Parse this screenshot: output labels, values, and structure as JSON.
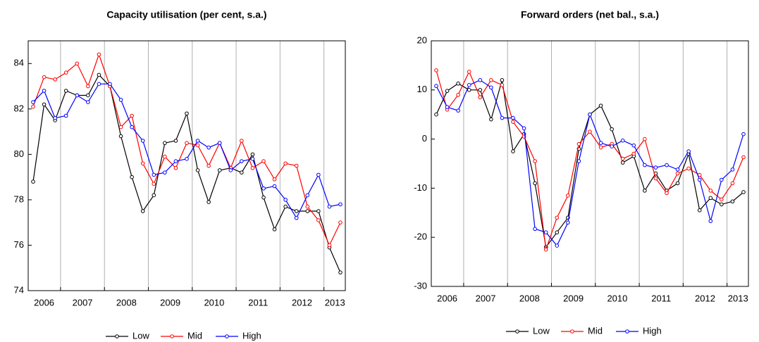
{
  "chart_data": [
    {
      "type": "line",
      "title": "Capacity utilisation (per cent, s.a.)",
      "categories": [
        "2006",
        null,
        null,
        "2007",
        null,
        null,
        null,
        "2008",
        null,
        null,
        null,
        "2009",
        null,
        null,
        null,
        "2010",
        null,
        null,
        null,
        "2011",
        null,
        null,
        null,
        "2012",
        null,
        null,
        null,
        "2013",
        null
      ],
      "series": [
        {
          "name": "Low",
          "color": "#000000",
          "values": [
            78.8,
            82.2,
            81.5,
            82.8,
            82.6,
            82.6,
            83.5,
            83.0,
            80.8,
            79.0,
            77.5,
            78.2,
            80.5,
            80.6,
            81.8,
            79.3,
            77.9,
            79.3,
            79.4,
            79.2,
            80.0,
            78.1,
            76.7,
            77.7,
            77.5,
            77.5,
            77.5,
            75.9,
            74.8
          ]
        },
        {
          "name": "Mid",
          "color": "#ff0000",
          "values": [
            82.1,
            83.4,
            83.3,
            83.6,
            84.0,
            83.0,
            84.4,
            83.0,
            81.2,
            81.7,
            79.6,
            78.7,
            79.9,
            79.4,
            80.5,
            80.4,
            79.5,
            80.5,
            79.4,
            80.6,
            79.4,
            79.7,
            78.9,
            79.6,
            79.5,
            77.7,
            77.1,
            76.0,
            77.0
          ]
        },
        {
          "name": "High",
          "color": "#0000ff",
          "values": [
            82.3,
            82.8,
            81.6,
            81.7,
            82.6,
            82.3,
            83.1,
            83.1,
            82.4,
            81.2,
            80.6,
            79.1,
            79.2,
            79.7,
            79.8,
            80.6,
            80.3,
            80.5,
            79.3,
            79.7,
            79.8,
            78.5,
            78.6,
            78.0,
            77.2,
            78.2,
            79.1,
            77.7,
            77.8
          ]
        }
      ],
      "ylim": [
        74,
        85
      ],
      "yticks": [
        74,
        76,
        78,
        80,
        82,
        84
      ],
      "grid": "x",
      "legend": "bottom"
    },
    {
      "type": "line",
      "title": "Forward orders (net bal., s.a.)",
      "categories": [
        "2006",
        null,
        null,
        "2007",
        null,
        null,
        null,
        "2008",
        null,
        null,
        null,
        "2009",
        null,
        null,
        null,
        "2010",
        null,
        null,
        null,
        "2011",
        null,
        null,
        null,
        "2012",
        null,
        null,
        null,
        "2013",
        null
      ],
      "series": [
        {
          "name": "Low",
          "color": "#000000",
          "values": [
            5,
            9.8,
            11.3,
            10,
            10,
            4,
            12,
            -2.5,
            1,
            -9,
            -22,
            -19,
            -16,
            -2,
            5,
            6.8,
            2,
            -4.8,
            -3.5,
            -10.5,
            -7,
            -10.5,
            -9,
            -3,
            -14.5,
            -12,
            -13.3,
            -12.7,
            -10.8
          ]
        },
        {
          "name": "Mid",
          "color": "#ff0000",
          "values": [
            14,
            6,
            9,
            13.7,
            8.5,
            12,
            11,
            3.5,
            0.5,
            -4.5,
            -22.5,
            -16,
            -11.5,
            -1,
            1.5,
            -1.7,
            -1,
            -4,
            -3,
            0,
            -8,
            -11,
            -7,
            -6,
            -7.3,
            -10.5,
            -12.3,
            -9,
            -3.7
          ]
        },
        {
          "name": "High",
          "color": "#0000ff",
          "values": [
            10.8,
            6.5,
            5.8,
            11,
            12,
            10.5,
            4.3,
            4.3,
            2.2,
            -18.3,
            -19,
            -21.7,
            -17,
            -4.5,
            5,
            -0.8,
            -1.5,
            -0.3,
            -1.3,
            -5.3,
            -5.8,
            -5.3,
            -6.2,
            -2.5,
            -8.3,
            -16.7,
            -8.3,
            -6.2,
            1
          ]
        }
      ],
      "ylim": [
        -30,
        20
      ],
      "yticks": [
        -30,
        -20,
        -10,
        0,
        10,
        20
      ],
      "grid": "x",
      "legend": "bottom"
    }
  ]
}
